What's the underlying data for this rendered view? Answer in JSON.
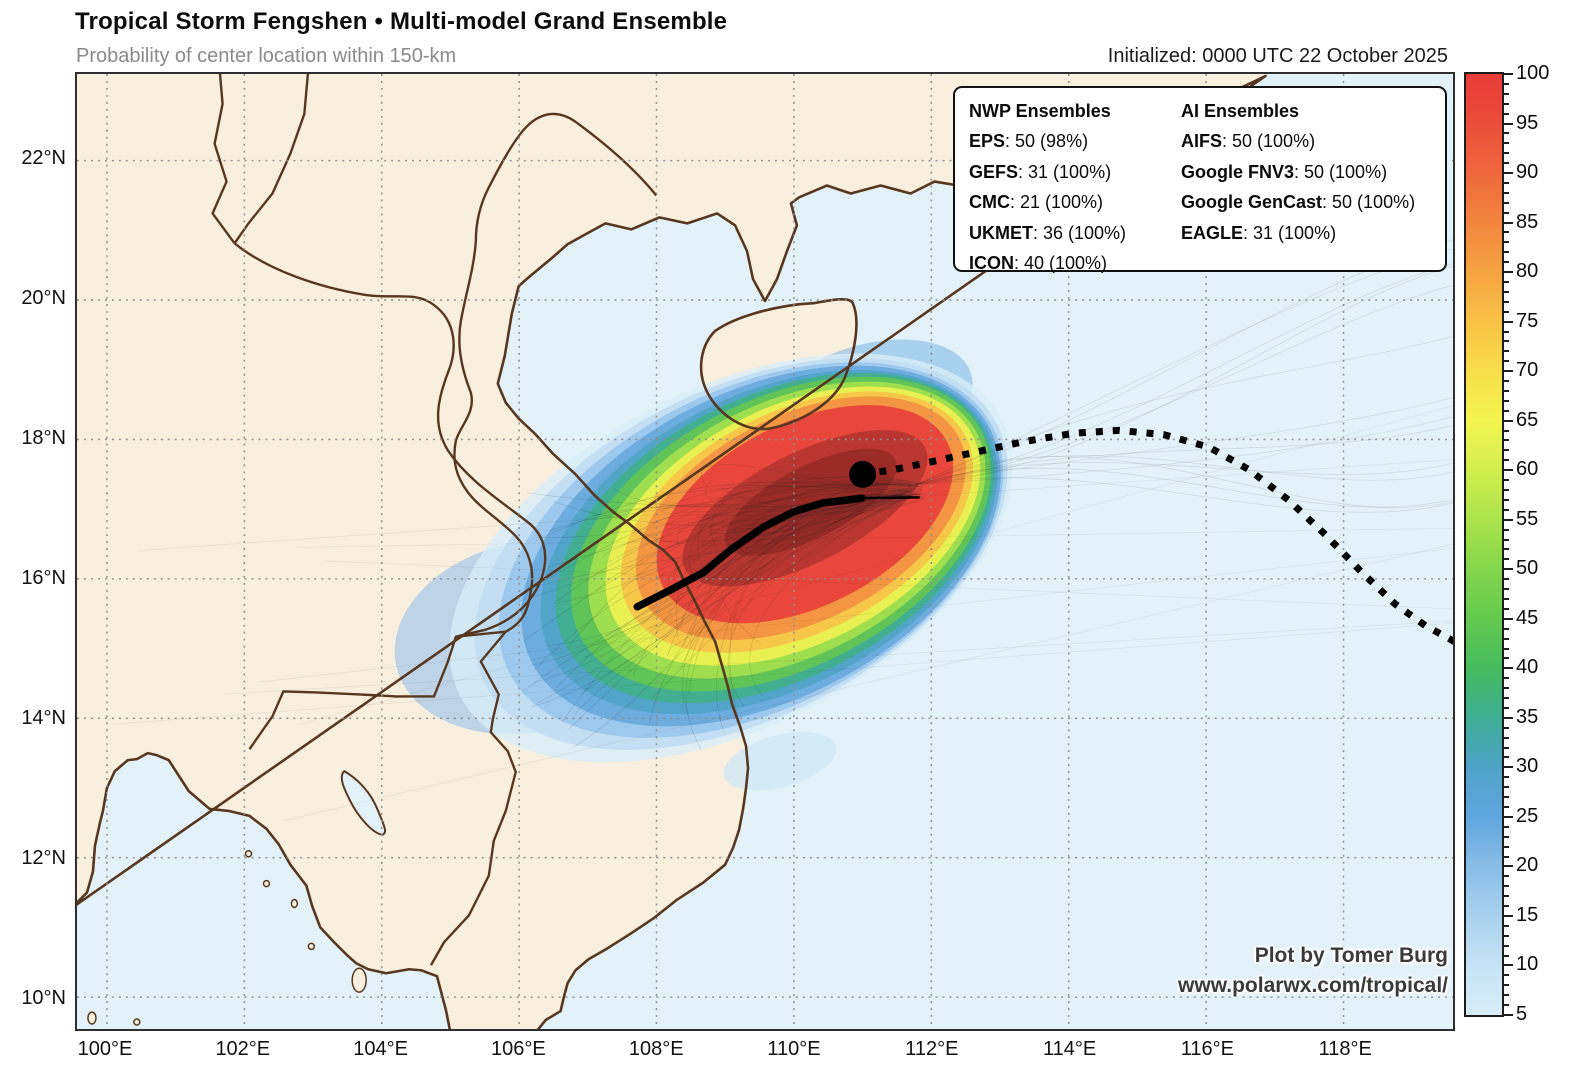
{
  "header": {
    "title": "Tropical Storm Fengshen • Multi-model Grand Ensemble",
    "subtitle": "Probability of center location within 150-km",
    "initialized": "Initialized: 0000 UTC 22 October 2025"
  },
  "footer": {
    "credit": "Plot by Tomer Burg",
    "url": "www.polarwx.com/tropical/"
  },
  "legend": {
    "nwp_title": "NWP Ensembles",
    "ai_title": "AI Ensembles",
    "nwp": [
      {
        "model": "EPS",
        "value": "50 (98%)"
      },
      {
        "model": "GEFS",
        "value": "31 (100%)"
      },
      {
        "model": "CMC",
        "value": "21 (100%)"
      },
      {
        "model": "UKMET",
        "value": "36 (100%)"
      },
      {
        "model": "ICON",
        "value": "40 (100%)"
      }
    ],
    "ai": [
      {
        "model": "AIFS",
        "value": "50 (100%)"
      },
      {
        "model": "Google FNV3",
        "value": "50 (100%)"
      },
      {
        "model": "Google GenCast",
        "value": "50 (100%)"
      },
      {
        "model": "EAGLE",
        "value": "31 (100%)"
      }
    ]
  },
  "axes": {
    "lon_ticks": [
      {
        "value": 100,
        "label": "100°E"
      },
      {
        "value": 102,
        "label": "102°E"
      },
      {
        "value": 104,
        "label": "104°E"
      },
      {
        "value": 106,
        "label": "106°E"
      },
      {
        "value": 108,
        "label": "108°E"
      },
      {
        "value": 110,
        "label": "110°E"
      },
      {
        "value": 112,
        "label": "112°E"
      },
      {
        "value": 114,
        "label": "114°E"
      },
      {
        "value": 116,
        "label": "116°E"
      },
      {
        "value": 118,
        "label": "118°E"
      }
    ],
    "lat_ticks": [
      {
        "value": 10,
        "label": "10°N"
      },
      {
        "value": 12,
        "label": "12°N"
      },
      {
        "value": 14,
        "label": "14°N"
      },
      {
        "value": 16,
        "label": "16°N"
      },
      {
        "value": 18,
        "label": "18°N"
      },
      {
        "value": 20,
        "label": "20°N"
      },
      {
        "value": 22,
        "label": "22°N"
      }
    ]
  },
  "colorbar": {
    "min": 5,
    "max": 100,
    "label_step": 5,
    "minor_step": 1,
    "unit": "%",
    "gradient": [
      {
        "v": 5,
        "c": "#d9edf8"
      },
      {
        "v": 10,
        "c": "#c6e2f4"
      },
      {
        "v": 15,
        "c": "#a9d1ee"
      },
      {
        "v": 20,
        "c": "#88bde7"
      },
      {
        "v": 25,
        "c": "#60a6de"
      },
      {
        "v": 30,
        "c": "#4fa3c8"
      },
      {
        "v": 35,
        "c": "#3fae94"
      },
      {
        "v": 40,
        "c": "#46bb5e"
      },
      {
        "v": 45,
        "c": "#63c94f"
      },
      {
        "v": 50,
        "c": "#85d64d"
      },
      {
        "v": 55,
        "c": "#abe34c"
      },
      {
        "v": 60,
        "c": "#d2ee4e"
      },
      {
        "v": 65,
        "c": "#f2f451"
      },
      {
        "v": 70,
        "c": "#f8de4b"
      },
      {
        "v": 75,
        "c": "#f8c246"
      },
      {
        "v": 80,
        "c": "#f5a342"
      },
      {
        "v": 85,
        "c": "#f2853f"
      },
      {
        "v": 90,
        "c": "#ee683c"
      },
      {
        "v": 95,
        "c": "#ea4d3a"
      },
      {
        "v": 100,
        "c": "#e73c37"
      }
    ]
  },
  "colors": {
    "land": "#f9efde",
    "ocean": "#e3f2f9",
    "coast": "#57371f",
    "grid": "#8f8f8f",
    "track": "#000000"
  },
  "chart_data": {
    "type": "map",
    "storm": "Tropical Storm Fengshen",
    "product": "Multi-model Grand Ensemble",
    "field": "Probability of center location within 150-km (%)",
    "initialization": "0000 UTC 22 October 2025",
    "map_extent": {
      "lon": [
        99.6,
        119.6
      ],
      "lat": [
        9.5,
        23.2
      ]
    },
    "current_position": {
      "lon": 111.0,
      "lat": 17.5
    },
    "past_track": [
      [
        111.0,
        17.5
      ],
      [
        111.47,
        17.57
      ],
      [
        112.05,
        17.69
      ],
      [
        112.7,
        17.83
      ],
      [
        113.35,
        17.97
      ],
      [
        114.08,
        18.09
      ],
      [
        114.73,
        18.13
      ],
      [
        115.38,
        18.07
      ],
      [
        116.04,
        17.89
      ],
      [
        116.62,
        17.57
      ],
      [
        117.2,
        17.13
      ],
      [
        117.74,
        16.63
      ],
      [
        118.26,
        16.1
      ],
      [
        118.75,
        15.64
      ],
      [
        119.19,
        15.33
      ],
      [
        119.67,
        15.07
      ]
    ],
    "mean_track": [
      [
        107.72,
        15.6
      ],
      [
        108.2,
        15.84
      ],
      [
        108.68,
        16.09
      ],
      [
        109.07,
        16.41
      ],
      [
        109.55,
        16.74
      ],
      [
        109.99,
        16.96
      ],
      [
        110.42,
        17.09
      ],
      [
        110.77,
        17.13
      ],
      [
        110.99,
        17.16
      ]
    ],
    "mean_track_tail": [
      [
        110.99,
        17.16
      ],
      [
        111.83,
        17.17
      ]
    ],
    "probability_max_center": {
      "lon": 110.1,
      "lat": 16.9
    },
    "ensemble_members": {
      "EPS": 50,
      "GEFS": 31,
      "CMC": 21,
      "UKMET": 36,
      "ICON": 40,
      "AIFS": 50,
      "Google FNV3": 50,
      "Google GenCast": 50,
      "EAGLE": 31
    }
  }
}
